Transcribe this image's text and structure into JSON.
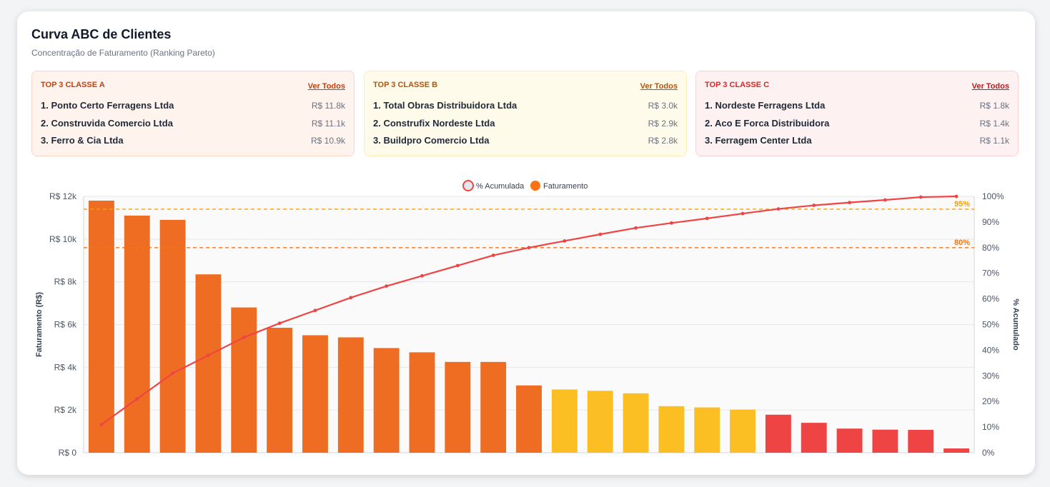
{
  "header": {
    "title": "Curva ABC de Clientes",
    "subtitle": "Concentração de Faturamento (Ranking Pareto)"
  },
  "top3": [
    {
      "heading": "TOP 3 CLASSE A",
      "link": "Ver Todos",
      "color": "#e8590c",
      "items": [
        {
          "name": "1. Ponto Certo Ferragens Ltda",
          "value": "R$ 11.8k"
        },
        {
          "name": "2. Construvida Comercio Ltda",
          "value": "R$ 11.1k"
        },
        {
          "name": "3. Ferro & Cia Ltda",
          "value": "R$ 10.9k"
        }
      ]
    },
    {
      "heading": "TOP 3 CLASSE B",
      "link": "Ver Todos",
      "color": "#d97706",
      "items": [
        {
          "name": "1. Total Obras Distribuidora Ltda",
          "value": "R$ 3.0k"
        },
        {
          "name": "2. Construfix Nordeste Ltda",
          "value": "R$ 2.9k"
        },
        {
          "name": "3. Buildpro Comercio Ltda",
          "value": "R$ 2.8k"
        }
      ]
    },
    {
      "heading": "TOP 3 CLASSE C",
      "link": "Ver Todos",
      "color": "#dc2626",
      "items": [
        {
          "name": "1. Nordeste Ferragens Ltda",
          "value": "R$ 1.8k"
        },
        {
          "name": "2. Aco E Forca Distribuidora",
          "value": "R$ 1.4k"
        },
        {
          "name": "3. Ferragem Center Ltda",
          "value": "R$ 1.1k"
        }
      ]
    }
  ],
  "chart_data": {
    "type": "bar",
    "legend": [
      {
        "label": "% Acumulada",
        "color": "#ef4444",
        "fill": "#e5e7eb"
      },
      {
        "label": "Faturamento",
        "color": "#f97316"
      }
    ],
    "legend_position": "top-center",
    "ylabel_left": "Faturamento (R$)",
    "ylabel_right": "% Acumulado",
    "yticks_left": [
      "R$ 0",
      "R$ 2k",
      "R$ 4k",
      "R$ 6k",
      "R$ 8k",
      "R$ 10k",
      "R$ 12k"
    ],
    "yticks_right": [
      "0%",
      "10%",
      "20%",
      "30%",
      "40%",
      "50%",
      "60%",
      "70%",
      "80%",
      "90%",
      "100%"
    ],
    "ylim_left": [
      0,
      12000
    ],
    "ylim_right": [
      0,
      100
    ],
    "grid": true,
    "class_colors": {
      "A": "#ef6c23",
      "B": "#fbbf24",
      "C": "#ef4444"
    },
    "values": [
      11800,
      11100,
      10900,
      8350,
      6800,
      5850,
      5500,
      5400,
      4900,
      4700,
      4250,
      4250,
      3150,
      2960,
      2900,
      2780,
      2180,
      2120,
      2020,
      1780,
      1400,
      1130,
      1080,
      1070,
      200
    ],
    "classes": [
      "A",
      "A",
      "A",
      "A",
      "A",
      "A",
      "A",
      "A",
      "A",
      "A",
      "A",
      "A",
      "A",
      "B",
      "B",
      "B",
      "B",
      "B",
      "B",
      "C",
      "C",
      "C",
      "C",
      "C",
      "C"
    ],
    "cumulative_pct": [
      11,
      21,
      31,
      38,
      45,
      50.5,
      55.5,
      60.5,
      65,
      69,
      73,
      77,
      80,
      82.6,
      85.2,
      87.7,
      89.6,
      91.4,
      93.3,
      95.1,
      96.5,
      97.6,
      98.6,
      99.7,
      100
    ],
    "thresholds": [
      {
        "label": "95%",
        "value": 95,
        "color": "#f59e0b"
      },
      {
        "label": "80%",
        "value": 80,
        "color": "#f97316"
      }
    ]
  }
}
